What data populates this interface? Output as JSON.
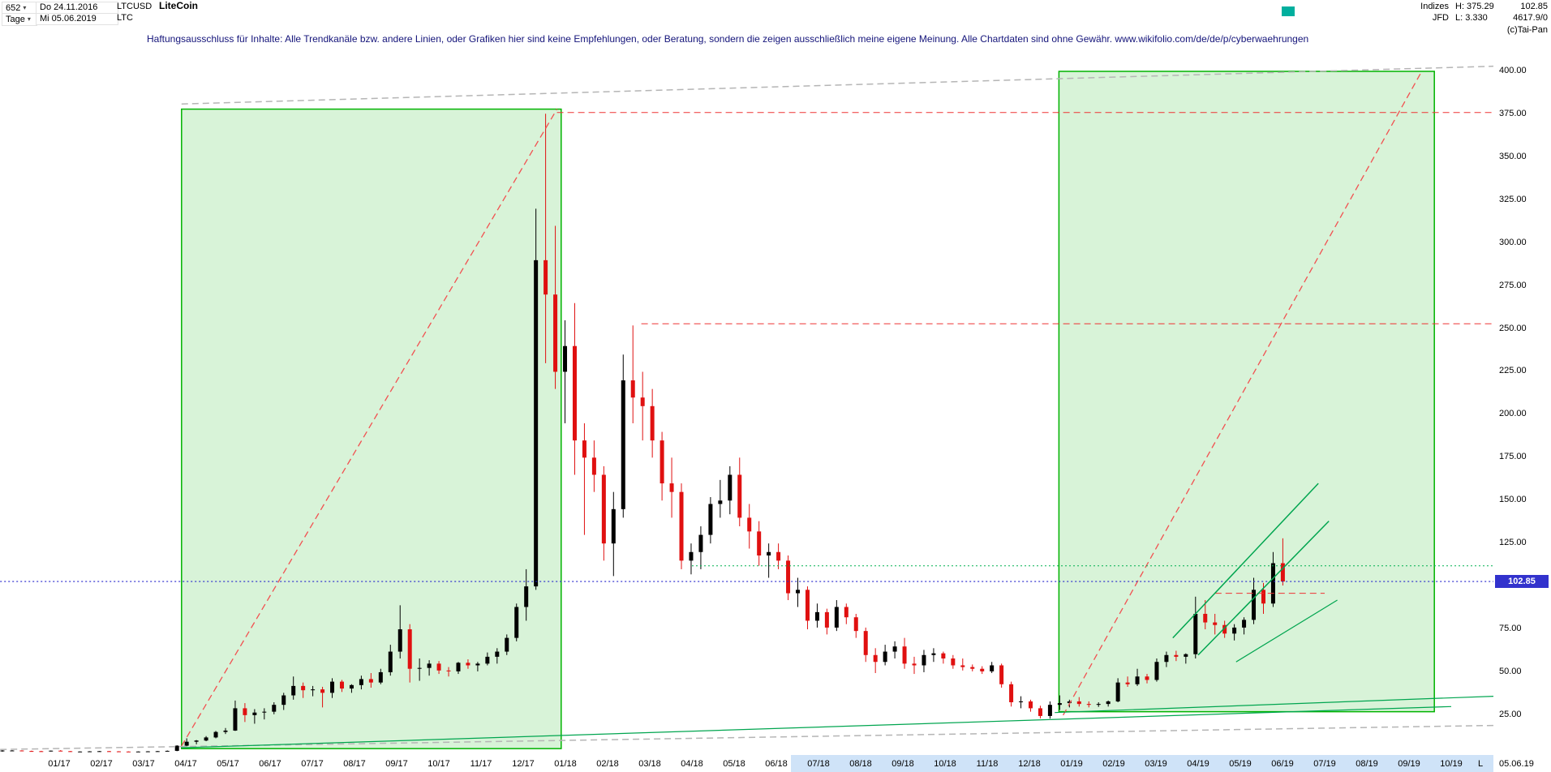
{
  "header": {
    "bars_count": "652",
    "date_start": "Do 24.11.2016",
    "symbol": "LTCUSD",
    "name": "LiteCoin",
    "period_label": "Tage",
    "date_end": "Mi 05.06.2019",
    "ticker": "LTC",
    "right": {
      "indizes_label": "Indizes",
      "high_label": "H: 375.29",
      "last_price": "102.85",
      "feed_label": "JFD",
      "low_label": "L: 3.330",
      "volume": "4617.9/0",
      "copyright": "(c)Tai-Pan"
    }
  },
  "disclaimer": "Haftungsausschluss für Inhalte: Alle Trendkanäle bzw. andere Linien, oder Grafiken hier sind keine Empfehlungen, oder Beratung, sondern die zeigen ausschließlich meine eigene Meinung. Alle Chartdaten sind ohne Gewähr.  www.wikifolio.com/de/de/p/cyberwaehrungen",
  "axis": {
    "price_tag": "102.85",
    "l_marker": "L",
    "last_date": "05.06.19"
  },
  "colors": {
    "candle_up": "#000000",
    "candle_down": "#e01010",
    "box_fill": "#d8f3d8",
    "box_border": "#00b300",
    "red_dashed": "#ee3333",
    "gray_dashed": "#b5b5b5",
    "green_line": "#00a54f",
    "blue_dotted": "#2323cc",
    "price_tag_bg": "#3232cd",
    "axis_highlight": "#cfe3f8",
    "status_marker": "#00af9e",
    "disclaimer_text": "#14147a"
  },
  "chart_data": {
    "type": "candlestick",
    "title": "LiteCoin LTCUSD Tageschart",
    "instrument": "LTCUSD",
    "timeframe": "Tage",
    "first_date": "24.11.2016",
    "last_date": "05.06.2019",
    "high": 375.29,
    "low": 3.33,
    "last_price": 102.85,
    "ylim": [
      0,
      400
    ],
    "grid": false,
    "granularity": "weekly OHLC read from chart",
    "x_tick_labels": [
      "01/17",
      "02/17",
      "03/17",
      "04/17",
      "05/17",
      "06/17",
      "07/17",
      "08/17",
      "09/17",
      "10/17",
      "11/17",
      "12/17",
      "01/18",
      "02/18",
      "03/18",
      "04/18",
      "05/18",
      "06/18",
      "07/18",
      "08/18",
      "09/18",
      "10/18",
      "11/18",
      "12/18",
      "01/19",
      "02/19",
      "03/19",
      "04/19",
      "05/19",
      "06/19",
      "07/19",
      "08/19",
      "09/19",
      "10/19"
    ],
    "y_tick_labels": [
      "400.00",
      "375.00",
      "350.00",
      "325.00",
      "300.00",
      "275.00",
      "250.00",
      "225.00",
      "200.00",
      "175.00",
      "150.00",
      "125.00",
      "100.00",
      "75.00",
      "50.00",
      "25.00"
    ],
    "ohlc_weekly": [
      [
        3.9,
        4.6,
        3.7,
        4.4
      ],
      [
        4.4,
        4.6,
        4.2,
        4.4
      ],
      [
        4.4,
        4.5,
        3.9,
        4.1
      ],
      [
        4.1,
        4.3,
        3.9,
        4.0
      ],
      [
        4.0,
        4.2,
        3.8,
        3.9
      ],
      [
        3.9,
        4.4,
        3.8,
        4.3
      ],
      [
        4.3,
        4.6,
        3.9,
        4.0
      ],
      [
        4.0,
        4.1,
        3.6,
        3.8
      ],
      [
        3.8,
        3.9,
        3.6,
        3.8
      ],
      [
        3.8,
        4.0,
        3.7,
        3.9
      ],
      [
        3.9,
        4.1,
        3.8,
        4.0
      ],
      [
        4.0,
        4.1,
        3.8,
        3.9
      ],
      [
        3.9,
        4.0,
        3.7,
        3.8
      ],
      [
        3.8,
        3.9,
        3.6,
        3.7
      ],
      [
        3.7,
        3.9,
        3.6,
        3.8
      ],
      [
        3.8,
        4.0,
        3.7,
        3.9
      ],
      [
        3.9,
        4.1,
        3.7,
        4.0
      ],
      [
        4.0,
        4.4,
        3.8,
        4.2
      ],
      [
        4.2,
        7.5,
        4.0,
        7.2
      ],
      [
        7.2,
        11.5,
        6.8,
        9.5
      ],
      [
        9.5,
        10.5,
        8.0,
        10.2
      ],
      [
        10.2,
        12.8,
        9.8,
        12.0
      ],
      [
        12.0,
        15.8,
        11.5,
        15.2
      ],
      [
        15.2,
        17.5,
        14.0,
        16.0
      ],
      [
        16.0,
        33.5,
        15.8,
        29.0
      ],
      [
        29.0,
        32.0,
        21.0,
        25.0
      ],
      [
        25.0,
        28.5,
        20.0,
        26.5
      ],
      [
        26.5,
        29.0,
        22.5,
        27.0
      ],
      [
        27.0,
        32.5,
        25.5,
        31.0
      ],
      [
        31.0,
        38.0,
        28.0,
        36.5
      ],
      [
        36.5,
        47.5,
        34.0,
        42.0
      ],
      [
        42.0,
        44.0,
        35.0,
        39.5
      ],
      [
        39.5,
        42.0,
        36.0,
        40.0
      ],
      [
        40.0,
        41.5,
        29.5,
        38.0
      ],
      [
        38.0,
        46.5,
        35.0,
        44.5
      ],
      [
        44.5,
        45.5,
        38.5,
        40.5
      ],
      [
        40.5,
        43.0,
        38.0,
        42.5
      ],
      [
        42.5,
        48.0,
        40.0,
        46.0
      ],
      [
        46.0,
        49.5,
        41.0,
        44.0
      ],
      [
        44.0,
        52.0,
        43.0,
        50.0
      ],
      [
        50.0,
        66.0,
        48.0,
        62.0
      ],
      [
        62.0,
        89.0,
        58.0,
        75.0
      ],
      [
        75.0,
        78.0,
        44.0,
        52.0
      ],
      [
        52.0,
        58.0,
        45.0,
        52.5
      ],
      [
        52.5,
        57.0,
        48.0,
        55.0
      ],
      [
        55.0,
        56.5,
        49.0,
        51.0
      ],
      [
        51.0,
        53.0,
        47.5,
        50.5
      ],
      [
        50.5,
        56.0,
        49.0,
        55.5
      ],
      [
        55.5,
        57.5,
        52.0,
        54.0
      ],
      [
        54.0,
        56.0,
        50.5,
        55.0
      ],
      [
        55.0,
        61.5,
        54.0,
        59.0
      ],
      [
        59.0,
        64.0,
        55.0,
        62.0
      ],
      [
        62.0,
        72.0,
        60.0,
        70.0
      ],
      [
        70.0,
        90.0,
        68.0,
        88.0
      ],
      [
        88.0,
        110.0,
        80.0,
        100.0
      ],
      [
        100.0,
        320.0,
        98.0,
        290.0
      ],
      [
        290.0,
        375.3,
        230.0,
        270.0
      ],
      [
        270.0,
        310.0,
        215.0,
        225.0
      ],
      [
        225.0,
        255.0,
        195.0,
        240.0
      ],
      [
        240.0,
        265.0,
        165.0,
        185.0
      ],
      [
        185.0,
        195.0,
        130.0,
        175.0
      ],
      [
        175.0,
        185.0,
        155.0,
        165.0
      ],
      [
        165.0,
        170.0,
        115.0,
        125.0
      ],
      [
        125.0,
        155.0,
        106.0,
        145.0
      ],
      [
        145.0,
        235.0,
        140.0,
        220.0
      ],
      [
        220.0,
        252.0,
        195.0,
        210.0
      ],
      [
        210.0,
        225.0,
        185.0,
        205.0
      ],
      [
        205.0,
        215.0,
        175.0,
        185.0
      ],
      [
        185.0,
        190.0,
        150.0,
        160.0
      ],
      [
        160.0,
        175.0,
        140.0,
        155.0
      ],
      [
        155.0,
        160.0,
        110.0,
        115.0
      ],
      [
        115.0,
        125.0,
        107.0,
        120.0
      ],
      [
        120.0,
        135.0,
        110.0,
        130.0
      ],
      [
        130.0,
        152.0,
        125.0,
        148.0
      ],
      [
        148.0,
        162.0,
        140.0,
        150.0
      ],
      [
        150.0,
        170.0,
        142.0,
        165.0
      ],
      [
        165.0,
        175.0,
        135.0,
        140.0
      ],
      [
        140.0,
        148.0,
        122.0,
        132.0
      ],
      [
        132.0,
        138.0,
        112.0,
        118.0
      ],
      [
        118.0,
        125.0,
        105.0,
        120.0
      ],
      [
        120.0,
        125.0,
        110.0,
        115.0
      ],
      [
        115.0,
        118.0,
        92.0,
        96.0
      ],
      [
        96.0,
        105.0,
        88.0,
        98.0
      ],
      [
        98.0,
        100.0,
        75.0,
        80.0
      ],
      [
        80.0,
        90.0,
        76.0,
        85.0
      ],
      [
        85.0,
        87.0,
        72.0,
        76.0
      ],
      [
        76.0,
        92.0,
        74.0,
        88.0
      ],
      [
        88.0,
        90.0,
        78.0,
        82.0
      ],
      [
        82.0,
        84.0,
        70.0,
        74.0
      ],
      [
        74.0,
        76.0,
        56.0,
        60.0
      ],
      [
        60.0,
        64.0,
        49.5,
        56.0
      ],
      [
        56.0,
        66.0,
        54.0,
        62.0
      ],
      [
        62.0,
        68.0,
        58.0,
        65.0
      ],
      [
        65.0,
        70.0,
        52.0,
        55.0
      ],
      [
        55.0,
        59.0,
        49.0,
        54.0
      ],
      [
        54.0,
        63.0,
        50.0,
        60.0
      ],
      [
        60.0,
        64.0,
        56.0,
        61.0
      ],
      [
        61.0,
        62.0,
        55.0,
        58.0
      ],
      [
        58.0,
        60.0,
        52.0,
        54.0
      ],
      [
        54.0,
        58.0,
        51.0,
        53.0
      ],
      [
        53.0,
        54.5,
        50.5,
        52.0
      ],
      [
        52.0,
        53.5,
        49.0,
        50.5
      ],
      [
        50.5,
        56.0,
        49.5,
        54.0
      ],
      [
        54.0,
        55.0,
        41.0,
        43.0
      ],
      [
        43.0,
        44.5,
        30.0,
        32.5
      ],
      [
        32.5,
        36.0,
        29.0,
        33.0
      ],
      [
        33.0,
        34.0,
        27.0,
        29.0
      ],
      [
        29.0,
        30.5,
        23.1,
        24.5
      ],
      [
        24.5,
        33.0,
        23.0,
        31.0
      ],
      [
        31.0,
        36.5,
        28.0,
        32.0
      ],
      [
        32.0,
        34.0,
        29.5,
        33.0
      ],
      [
        33.0,
        35.5,
        30.0,
        31.5
      ],
      [
        31.5,
        33.0,
        29.5,
        31.0
      ],
      [
        31.0,
        32.5,
        29.8,
        31.5
      ],
      [
        31.5,
        33.5,
        30.0,
        33.0
      ],
      [
        33.0,
        46.5,
        32.5,
        44.0
      ],
      [
        44.0,
        47.5,
        41.5,
        43.0
      ],
      [
        43.0,
        52.0,
        42.0,
        47.5
      ],
      [
        47.5,
        49.0,
        43.5,
        45.5
      ],
      [
        45.5,
        58.0,
        44.5,
        56.0
      ],
      [
        56.0,
        62.0,
        53.0,
        60.0
      ],
      [
        60.0,
        62.5,
        56.5,
        59.0
      ],
      [
        59.0,
        61.0,
        55.0,
        60.5
      ],
      [
        60.5,
        94.0,
        58.0,
        84.0
      ],
      [
        84.0,
        92.0,
        75.0,
        79.0
      ],
      [
        79.0,
        84.0,
        72.0,
        77.5
      ],
      [
        77.5,
        80.0,
        70.0,
        72.5
      ],
      [
        72.5,
        78.0,
        68.5,
        76.0
      ],
      [
        76.0,
        82.0,
        72.0,
        80.5
      ],
      [
        80.5,
        105.0,
        78.0,
        98.0
      ],
      [
        98.0,
        102.0,
        84.0,
        90.0
      ],
      [
        90.0,
        120.0,
        88.0,
        113.5
      ],
      [
        113.5,
        128.0,
        100.5,
        102.85
      ]
    ],
    "annotations": {
      "boxes": [
        {
          "name": "trend-box-2017",
          "m1": 2.9,
          "m2": 11.9,
          "p1": 5.5,
          "p2": 378
        },
        {
          "name": "trend-box-2019",
          "m1": 23.7,
          "m2": 32.6,
          "p1": 27,
          "p2": 400
        }
      ],
      "lines": [
        {
          "name": "red-trend-diagonal-2017",
          "style": "dashed",
          "color": "#f25050",
          "width": 1.3,
          "m1": 2.9,
          "p1": 7,
          "m2": 11.8,
          "p2": 378
        },
        {
          "name": "red-trend-diagonal-2019",
          "style": "dashed",
          "color": "#f25050",
          "width": 1.3,
          "m1": 23.8,
          "p1": 25,
          "m2": 32.3,
          "p2": 400
        },
        {
          "name": "resistance-ath-375",
          "style": "dashed",
          "color": "#ee3333",
          "width": 1,
          "m1": 11.8,
          "p1": 376,
          "m2": 34,
          "p2": 376
        },
        {
          "name": "resistance-250",
          "style": "dashed",
          "color": "#ee3333",
          "width": 1,
          "m1": 13.8,
          "p1": 253,
          "m2": 34,
          "p2": 253
        },
        {
          "name": "support-green-112",
          "style": "dotted",
          "color": "#00b050",
          "width": 1,
          "m1": 15,
          "p1": 112,
          "m2": 34,
          "p2": 112
        },
        {
          "name": "support-red-96",
          "style": "dashed",
          "color": "#ee3333",
          "width": 1,
          "m1": 27.4,
          "p1": 96,
          "m2": 30,
          "p2": 96
        },
        {
          "name": "last-price-line",
          "style": "dotted",
          "color": "#2323cc",
          "width": 1.2,
          "m1": -1.4,
          "p1": 102.85,
          "m2": 34,
          "p2": 102.85
        },
        {
          "name": "gray-channel-top",
          "style": "dashed",
          "color": "#b5b5b5",
          "width": 1.5,
          "m1": 2.9,
          "p1": 381,
          "m2": 34,
          "p2": 403
        },
        {
          "name": "gray-channel-bottom",
          "style": "dashed",
          "color": "#b5b5b5",
          "width": 1.5,
          "m1": -1.4,
          "p1": 5,
          "m2": 34,
          "p2": 19
        },
        {
          "name": "green-support-long",
          "style": "solid",
          "color": "#00a54f",
          "width": 1.2,
          "m1": 2.9,
          "p1": 6,
          "m2": 33,
          "p2": 30
        },
        {
          "name": "green-support-2019",
          "style": "solid",
          "color": "#00a54f",
          "width": 1.2,
          "m1": 23.6,
          "p1": 26.5,
          "m2": 34,
          "p2": 36
        },
        {
          "name": "green-channel-2019-upper",
          "style": "solid",
          "color": "#00a54f",
          "width": 1.5,
          "m1": 26.4,
          "p1": 70,
          "m2": 29.85,
          "p2": 160
        },
        {
          "name": "green-channel-2019-mid",
          "style": "solid",
          "color": "#00a54f",
          "width": 1.5,
          "m1": 27.0,
          "p1": 60,
          "m2": 30.1,
          "p2": 138
        },
        {
          "name": "green-channel-2019-lower",
          "style": "solid",
          "color": "#00a54f",
          "width": 1.2,
          "m1": 27.9,
          "p1": 56,
          "m2": 30.3,
          "p2": 92
        }
      ]
    }
  }
}
